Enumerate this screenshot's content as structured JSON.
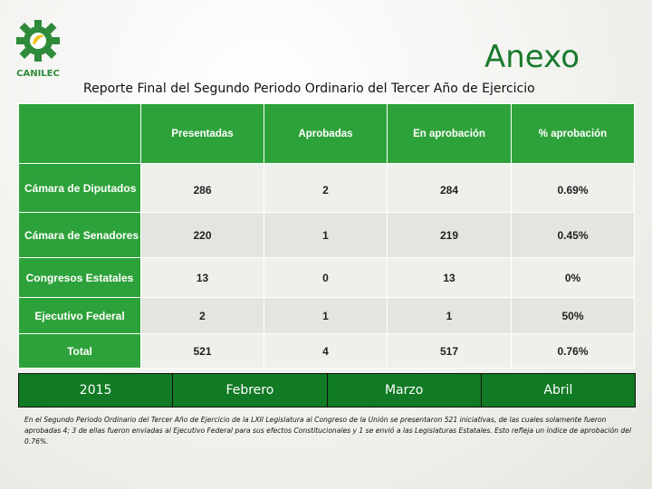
{
  "logo": {
    "brand": "CANILEC",
    "icon": "gear-leaf-logo-icon"
  },
  "header": {
    "title": "Anexo",
    "subtitle": "Reporte Final del Segundo Periodo Ordinario del Tercer Año de Ejercicio"
  },
  "table": {
    "columns": [
      "Presentadas",
      "Aprobadas",
      "En aprobación",
      "% aprobación"
    ],
    "rows": [
      {
        "label": "Cámara de Diputados",
        "values": [
          "286",
          "2",
          "284",
          "0.69%"
        ]
      },
      {
        "label": "Cámara de Senadores",
        "values": [
          "220",
          "1",
          "219",
          "0.45%"
        ]
      },
      {
        "label": "Congresos Estatales",
        "values": [
          "13",
          "0",
          "13",
          "0%"
        ]
      },
      {
        "label": "Ejecutivo Federal",
        "values": [
          "2",
          "1",
          "1",
          "50%"
        ]
      },
      {
        "label": "Total",
        "values": [
          "521",
          "4",
          "517",
          "0.76%"
        ]
      }
    ]
  },
  "tabs": [
    "2015",
    "Febrero",
    "Marzo",
    "Abril"
  ],
  "note": "En el Segundo Periodo Ordinario del Tercer Año de Ejercicio de la LXII Legislatura al Congreso de la Unión se presentaron 521 iniciativas, de las cuales solamente fueron aprobadas 4; 3 de ellas fueron enviadas al Ejecutivo Federal para sus efectos Constitucionales y 1 se envió a las Legislaturas Estatales. Esto refleja un índice de aprobación del 0.76%.",
  "colors": {
    "accent": "#2ea23a",
    "tab_bg": "#117a24",
    "title": "#1a7a2c"
  }
}
